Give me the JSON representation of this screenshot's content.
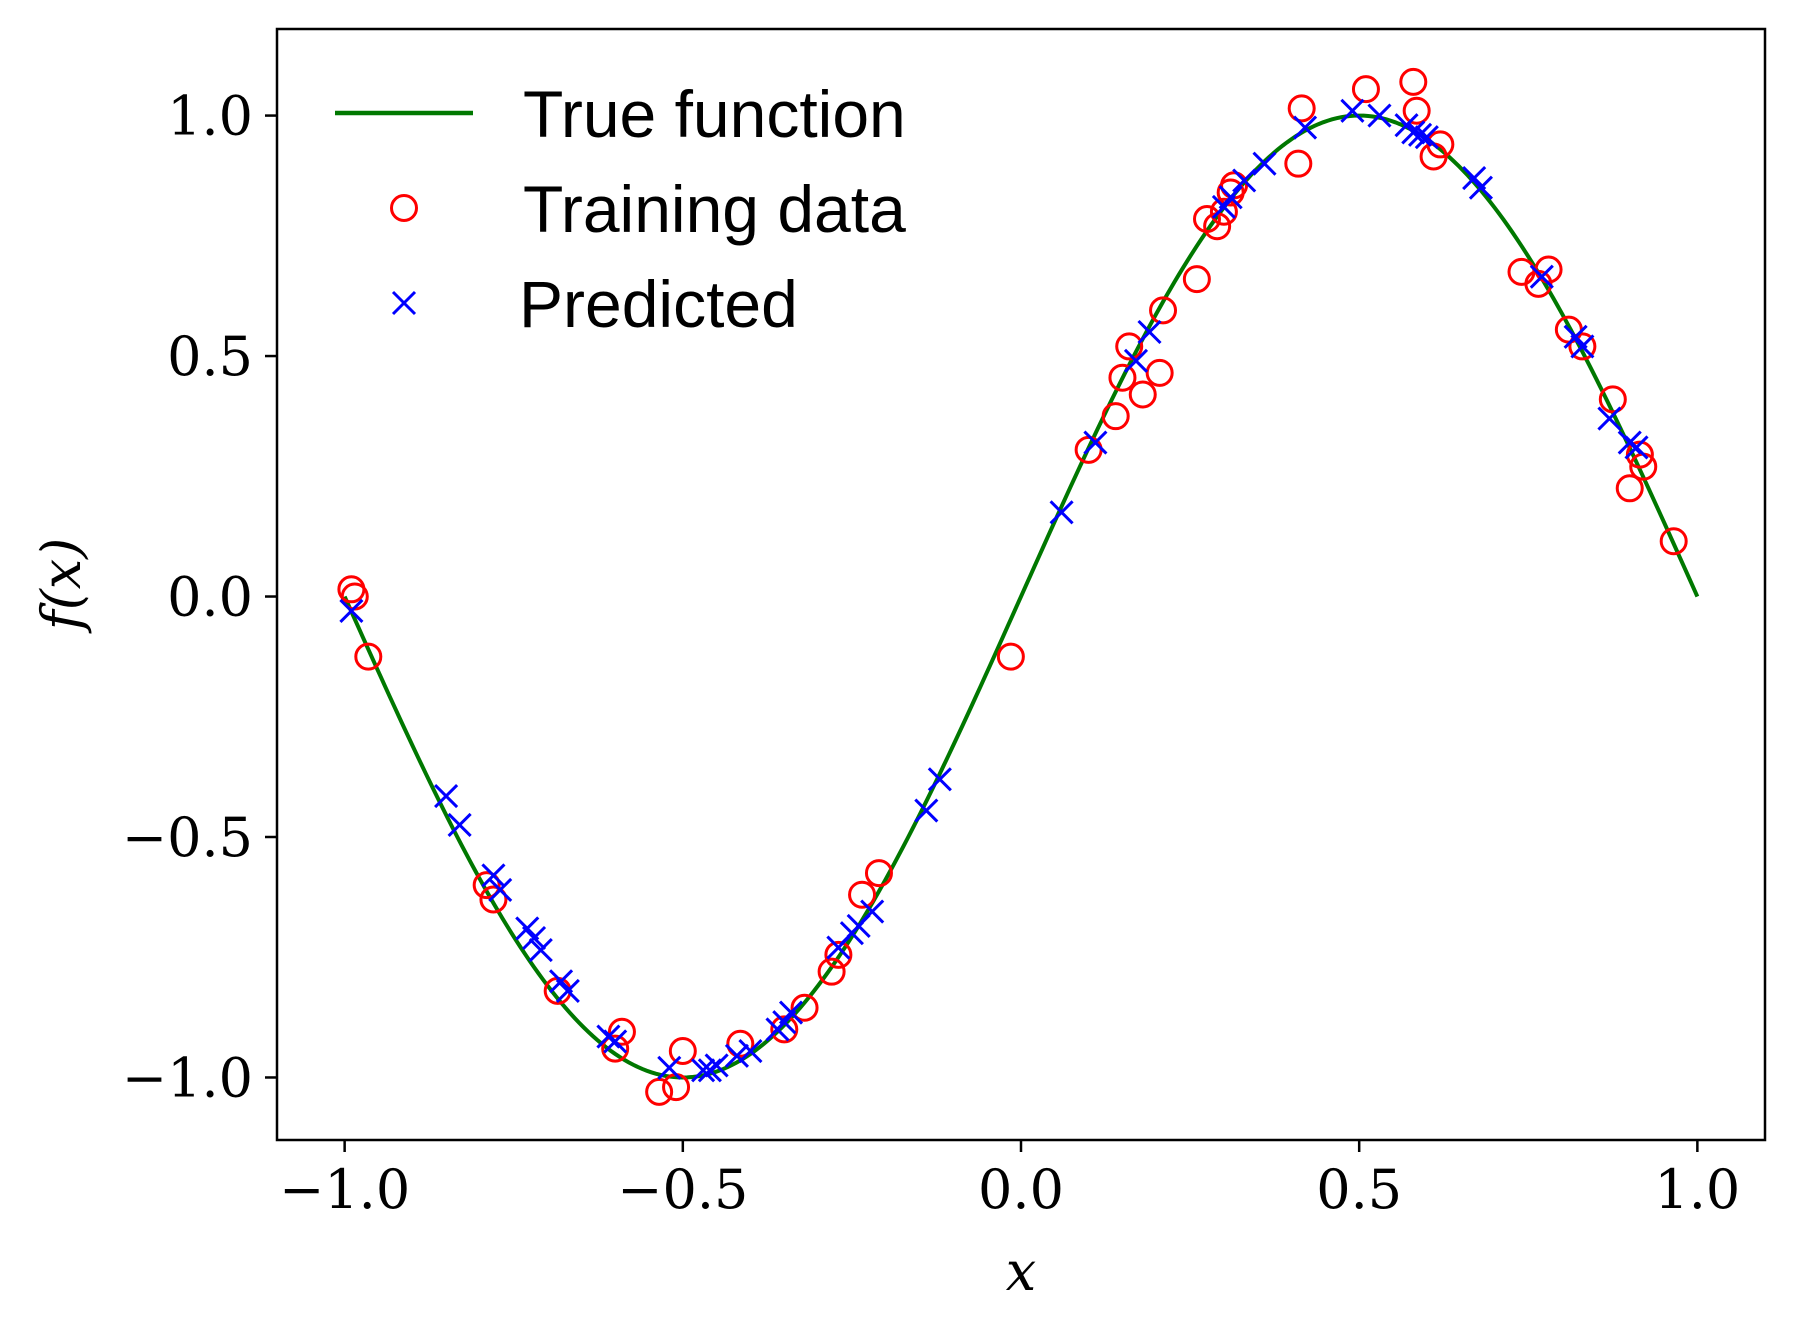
{
  "chart_data": {
    "type": "scatter",
    "xlabel": "x",
    "ylabel": "f(x)",
    "xlim": [
      -1.1,
      1.1
    ],
    "ylim": [
      -1.13,
      1.18
    ],
    "xticks": [
      -1.0,
      -0.5,
      0.0,
      0.5,
      1.0
    ],
    "xtick_labels": [
      "−1.0",
      "−0.5",
      "0.0",
      "0.5",
      "1.0"
    ],
    "yticks": [
      -1.0,
      -0.5,
      0.0,
      0.5,
      1.0
    ],
    "ytick_labels": [
      "−1.0",
      "−0.5",
      "0.0",
      "0.5",
      "1.0"
    ],
    "grid": false,
    "legend_position": "top-left",
    "legend": [
      "True function",
      "Training data",
      "Predicted"
    ],
    "colors": {
      "true_function": "#007800",
      "training": "#ff0000",
      "predicted": "#0000ff"
    },
    "true_function": {
      "name": "True function",
      "formula": "sin(pi * x)",
      "x_range": [
        -1.0,
        1.0
      ],
      "samples": 300
    },
    "training": {
      "name": "Training data",
      "x": [
        -0.99,
        -0.985,
        -0.965,
        -0.79,
        -0.78,
        -0.685,
        -0.6,
        -0.59,
        -0.535,
        -0.51,
        -0.5,
        -0.415,
        -0.35,
        -0.32,
        -0.28,
        -0.27,
        -0.235,
        -0.21,
        -0.015,
        0.1,
        0.14,
        0.15,
        0.16,
        0.18,
        0.205,
        0.21,
        0.26,
        0.275,
        0.29,
        0.3,
        0.31,
        0.315,
        0.41,
        0.415,
        0.51,
        0.58,
        0.585,
        0.61,
        0.62,
        0.74,
        0.765,
        0.78,
        0.81,
        0.83,
        0.875,
        0.9,
        0.915,
        0.92,
        0.965
      ],
      "y": [
        0.015,
        -0.0,
        -0.125,
        -0.6,
        -0.63,
        -0.82,
        -0.94,
        -0.905,
        -1.03,
        -1.02,
        -0.945,
        -0.93,
        -0.9,
        -0.855,
        -0.78,
        -0.745,
        -0.62,
        -0.575,
        -0.125,
        0.305,
        0.375,
        0.455,
        0.52,
        0.42,
        0.465,
        0.595,
        0.66,
        0.785,
        0.77,
        0.8,
        0.84,
        0.855,
        0.9,
        1.015,
        1.055,
        1.07,
        1.01,
        0.915,
        0.94,
        0.675,
        0.65,
        0.68,
        0.555,
        0.52,
        0.41,
        0.225,
        0.295,
        0.27,
        0.115
      ]
    },
    "predicted": {
      "name": "Predicted",
      "x": [
        -0.99,
        -0.85,
        -0.83,
        -0.78,
        -0.77,
        -0.73,
        -0.72,
        -0.71,
        -0.68,
        -0.67,
        -0.61,
        -0.6,
        -0.52,
        -0.47,
        -0.46,
        -0.45,
        -0.42,
        -0.4,
        -0.36,
        -0.35,
        -0.34,
        -0.27,
        -0.25,
        -0.24,
        -0.22,
        -0.14,
        -0.12,
        0.06,
        0.11,
        0.17,
        0.19,
        0.3,
        0.31,
        0.33,
        0.36,
        0.42,
        0.49,
        0.53,
        0.57,
        0.58,
        0.59,
        0.6,
        0.67,
        0.68,
        0.77,
        0.82,
        0.83,
        0.87,
        0.9,
        0.91
      ],
      "y": [
        -0.03,
        -0.415,
        -0.475,
        -0.58,
        -0.61,
        -0.69,
        -0.71,
        -0.735,
        -0.8,
        -0.82,
        -0.915,
        -0.925,
        -0.98,
        -0.985,
        -0.985,
        -0.975,
        -0.955,
        -0.945,
        -0.9,
        -0.885,
        -0.865,
        -0.73,
        -0.7,
        -0.685,
        -0.655,
        -0.445,
        -0.38,
        0.175,
        0.32,
        0.49,
        0.55,
        0.81,
        0.83,
        0.865,
        0.9,
        0.975,
        1.01,
        1.0,
        0.98,
        0.965,
        0.96,
        0.955,
        0.87,
        0.85,
        0.665,
        0.54,
        0.52,
        0.37,
        0.32,
        0.31
      ]
    }
  }
}
